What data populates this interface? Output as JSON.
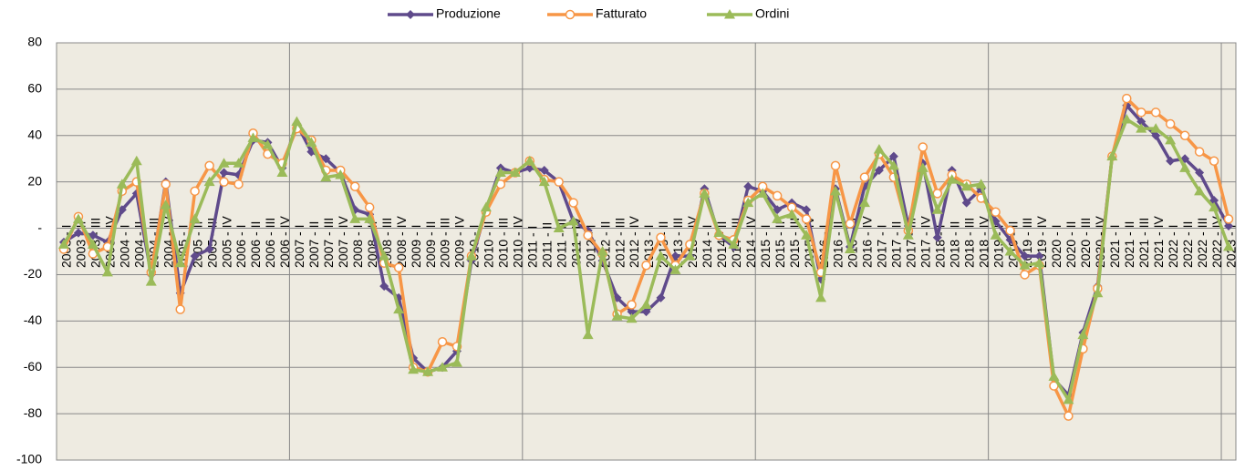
{
  "chart_data": {
    "type": "line",
    "categories": [
      "2003 - I",
      "2003 - II",
      "2003 - III",
      "2003 - IV",
      "2004 - I",
      "2004 - II",
      "2004 - III",
      "2004 - IV",
      "2005 - I",
      "2005 - II",
      "2005 - III",
      "2005 - IV",
      "2006 - I",
      "2006 - II",
      "2006 - III",
      "2006 - IV",
      "2007 - I",
      "2007 - II",
      "2007 - III",
      "2007 - IV",
      "2008 - I",
      "2008 - II",
      "2008 - III",
      "2008 - IV",
      "2009 - I",
      "2009 - II",
      "2009 - III",
      "2009 - IV",
      "2010 - I",
      "2010 - II",
      "2010 - III",
      "2010 - IV",
      "2011 - I",
      "2011 - II",
      "2011 - III",
      "2011 - IV",
      "2012 - I",
      "2012 - II",
      "2012 - III",
      "2012 - IV",
      "2013 - I",
      "2013 - II",
      "2013 - III",
      "2013 - IV",
      "2014 - I",
      "2014 - II",
      "2014 - III",
      "2014 - IV",
      "2015 - I",
      "2015 - II",
      "2015 - III",
      "2015 - IV",
      "2016 - I",
      "2016 - II",
      "2016 - III",
      "2016 - IV",
      "2017 - I",
      "2017 - II",
      "2017 - III",
      "2017 - IV",
      "2018 - I",
      "2018 - II",
      "2018 - III",
      "2018 - IV",
      "2019 - I",
      "2019 - II",
      "2019 - III",
      "2019 - IV",
      "2020 - I",
      "2020 - II",
      "2020 - III",
      "2020 - IV",
      "2021 - I",
      "2021 - II",
      "2021 - III",
      "2021 - IV",
      "2022 - I",
      "2022 - II",
      "2022 - III",
      "2022 - IV",
      "2023 - I"
    ],
    "series": [
      {
        "name": "Produzione",
        "color": "#5f4a8b",
        "marker": "diamond",
        "values": [
          -6,
          -2,
          -3,
          -6,
          8,
          15,
          -20,
          20,
          -28,
          -12,
          -9,
          24,
          23,
          38,
          37,
          26,
          45,
          33,
          30,
          24,
          8,
          6,
          -25,
          -30,
          -56,
          -62,
          -60,
          -53,
          -14,
          8,
          26,
          24,
          26,
          25,
          20,
          3,
          -1,
          -14,
          -30,
          -36,
          -36,
          -30,
          -12,
          -12,
          17,
          -3,
          -8,
          18,
          16,
          8,
          11,
          8,
          -22,
          17,
          -8,
          18,
          25,
          31,
          1,
          28,
          -4,
          25,
          11,
          17,
          3,
          -5,
          -12,
          -12,
          -65,
          -72,
          -45,
          -25,
          31,
          53,
          46,
          40,
          29,
          30,
          24,
          12,
          1
        ]
      },
      {
        "name": "Fatturato",
        "color": "#f79646",
        "marker": "circle",
        "values": [
          -9,
          5,
          -11,
          -8,
          16,
          20,
          -19,
          19,
          -35,
          16,
          27,
          20,
          19,
          41,
          32,
          28,
          43,
          38,
          25,
          25,
          18,
          9,
          -15,
          -17,
          -60,
          -62,
          -49,
          -51,
          -12,
          7,
          19,
          24,
          29,
          21,
          20,
          11,
          -3,
          -11,
          -37,
          -33,
          -16,
          -4,
          -16,
          -7,
          15,
          -3,
          -5,
          12,
          18,
          14,
          9,
          4,
          -19,
          27,
          2,
          22,
          32,
          22,
          -1,
          35,
          15,
          23,
          19,
          13,
          7,
          -1,
          -20,
          -16,
          -68,
          -81,
          -52,
          -26,
          31,
          56,
          50,
          50,
          45,
          40,
          33,
          29,
          4
        ]
      },
      {
        "name": "Ordini",
        "color": "#9bbb59",
        "marker": "triangle",
        "values": [
          -7,
          4,
          -7,
          -19,
          19,
          29,
          -23,
          10,
          -15,
          4,
          20,
          28,
          28,
          39,
          36,
          24,
          46,
          37,
          22,
          23,
          4,
          4,
          -12,
          -35,
          -61,
          -62,
          -60,
          -58,
          -12,
          9,
          24,
          24,
          29,
          20,
          0,
          3,
          -46,
          -10,
          -38,
          -39,
          -33,
          -12,
          -18,
          -12,
          15,
          -2,
          -7,
          11,
          15,
          4,
          6,
          -3,
          -30,
          16,
          -9,
          11,
          34,
          27,
          -3,
          26,
          8,
          21,
          18,
          19,
          -3,
          -10,
          -16,
          -15,
          -64,
          -74,
          -46,
          -28,
          31,
          47,
          43,
          43,
          38,
          26,
          16,
          9,
          -8
        ]
      }
    ],
    "ylim": [
      -100,
      80
    ],
    "yticks": [
      -100,
      -80,
      -60,
      -40,
      -20,
      {
        "value": 0,
        "label": "-"
      },
      20,
      40,
      60,
      80
    ],
    "grid": true,
    "legend": "top"
  }
}
